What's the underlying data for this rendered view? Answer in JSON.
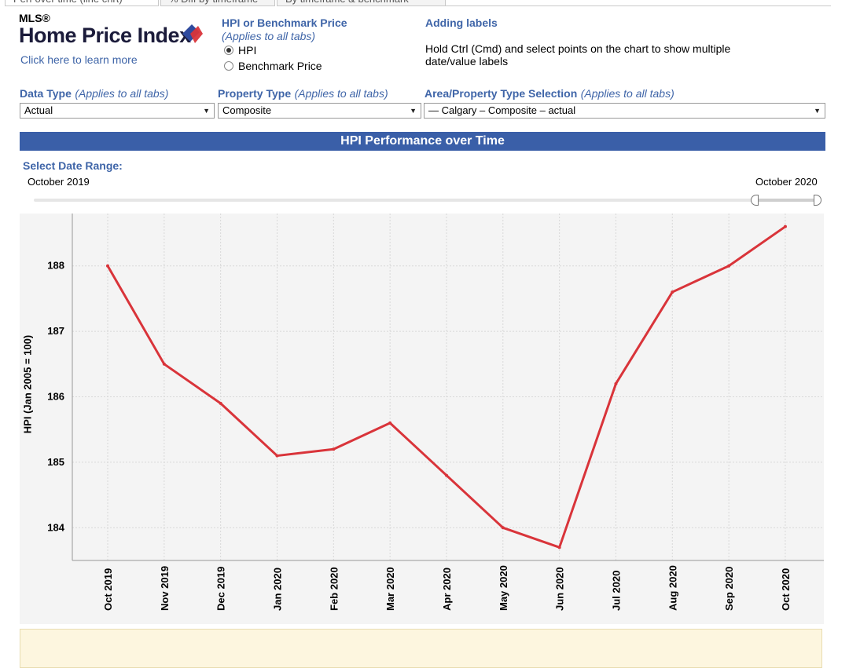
{
  "tabs": [
    {
      "label": "Perf over time (line chrt)"
    },
    {
      "label": "% Diff by timeframe"
    },
    {
      "label": "By timeframe & benchmark"
    }
  ],
  "logo": {
    "mls": "MLS®",
    "title": "Home Price Index",
    "link": "Click here to learn more",
    "mark_colors": [
      "#2f4a9e",
      "#d9343a"
    ]
  },
  "hpi_or_benchmark": {
    "heading": "HPI or Benchmark Price",
    "note": "(Applies to all tabs)",
    "options": [
      {
        "label": "HPI",
        "selected": true
      },
      {
        "label": "Benchmark Price",
        "selected": false
      }
    ]
  },
  "adding_labels": {
    "heading": "Adding labels",
    "text_line1": "Hold Ctrl (Cmd) and select points on the chart to show multiple",
    "text_line2": "date/value labels"
  },
  "filters": {
    "data_type": {
      "label": "Data Type",
      "note": "(Applies to all tabs)",
      "value": "Actual"
    },
    "property_type": {
      "label": "Property Type",
      "note": "(Applies to all tabs)",
      "value": "Composite"
    },
    "area": {
      "label": "Area/Property Type Selection",
      "note": "(Applies to all tabs)",
      "value": "— Calgary – Composite – actual"
    }
  },
  "banner": {
    "title": "HPI Performance over Time"
  },
  "date_range": {
    "label": "Select Date Range:",
    "start": "October 2019",
    "end": "October 2020",
    "start_fraction": 0.92,
    "end_fraction": 1.0
  },
  "colors": {
    "accent_blue": "#3a5fa8",
    "line_red": "#d9343a",
    "chart_bg": "#f4f4f4"
  },
  "chart_data": {
    "type": "line",
    "ylabel": "HPI (Jan 2005 = 100)",
    "categories": [
      "Oct 2019",
      "Nov 2019",
      "Dec 2019",
      "Jan 2020",
      "Feb 2020",
      "Mar 2020",
      "Apr 2020",
      "May 2020",
      "Jun 2020",
      "Jul 2020",
      "Aug 2020",
      "Sep 2020",
      "Oct 2020"
    ],
    "series": [
      {
        "values": [
          188.0,
          186.5,
          185.9,
          185.1,
          185.2,
          185.6,
          184.8,
          184.0,
          183.7,
          186.2,
          187.6,
          188.0,
          188.6
        ]
      }
    ],
    "yticks": [
      "184",
      "185",
      "186",
      "187",
      "188"
    ],
    "ylim": [
      183.5,
      188.8
    ],
    "grid": true
  }
}
